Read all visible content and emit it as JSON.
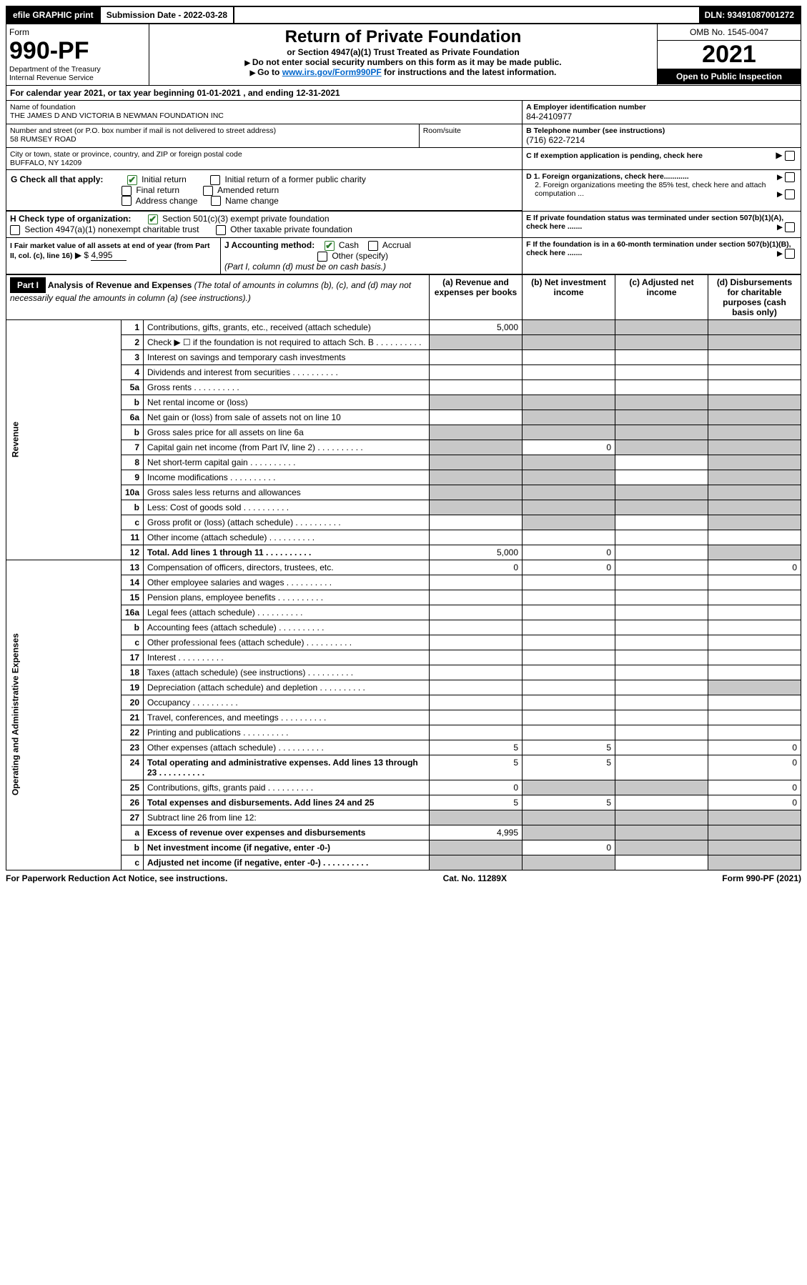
{
  "top": {
    "efile": "efile GRAPHIC print",
    "submission_label": "Submission Date - 2022-03-28",
    "dln": "DLN: 93491087001272"
  },
  "header": {
    "form_label": "Form",
    "form_no": "990-PF",
    "dept": "Department of the Treasury",
    "irs": "Internal Revenue Service",
    "title": "Return of Private Foundation",
    "subtitle": "or Section 4947(a)(1) Trust Treated as Private Foundation",
    "note1": "Do not enter social security numbers on this form as it may be made public.",
    "note2_pre": "Go to ",
    "note2_link": "www.irs.gov/Form990PF",
    "note2_post": " for instructions and the latest information.",
    "omb": "OMB No. 1545-0047",
    "year": "2021",
    "open": "Open to Public Inspection"
  },
  "cal": {
    "text_pre": "For calendar year 2021, or tax year beginning ",
    "begin": "01-01-2021",
    "mid": " , and ending ",
    "end": "12-31-2021"
  },
  "id": {
    "name_label": "Name of foundation",
    "name": "THE JAMES D AND VICTORIA B NEWMAN FOUNDATION INC",
    "addr_label": "Number and street (or P.O. box number if mail is not delivered to street address)",
    "addr": "58 RUMSEY ROAD",
    "room_label": "Room/suite",
    "city_label": "City or town, state or province, country, and ZIP or foreign postal code",
    "city": "BUFFALO, NY  14209",
    "a_label": "A Employer identification number",
    "ein": "84-2410977",
    "b_label": "B Telephone number (see instructions)",
    "phone": "(716) 622-7214",
    "c_label": "C If exemption application is pending, check here"
  },
  "g": {
    "label": "G Check all that apply:",
    "initial": "Initial return",
    "initial_public": "Initial return of a former public charity",
    "final": "Final return",
    "amended": "Amended return",
    "addr_change": "Address change",
    "name_change": "Name change"
  },
  "h": {
    "label": "H Check type of organization:",
    "opt1": "Section 501(c)(3) exempt private foundation",
    "opt2": "Section 4947(a)(1) nonexempt charitable trust",
    "opt3": "Other taxable private foundation"
  },
  "i": {
    "label": "I Fair market value of all assets at end of year (from Part II, col. (c), line 16)",
    "value": "4,995"
  },
  "j": {
    "label": "J Accounting method:",
    "cash": "Cash",
    "accrual": "Accrual",
    "other": "Other (specify)",
    "note": "(Part I, column (d) must be on cash basis.)"
  },
  "d": {
    "d1": "D 1. Foreign organizations, check here............",
    "d2": "2. Foreign organizations meeting the 85% test, check here and attach computation ..."
  },
  "e": {
    "label": "E  If private foundation status was terminated under section 507(b)(1)(A), check here ......."
  },
  "f": {
    "label": "F  If the foundation is in a 60-month termination under section 507(b)(1)(B), check here ......."
  },
  "part1": {
    "label": "Part I",
    "title": "Analysis of Revenue and Expenses",
    "note": "(The total of amounts in columns (b), (c), and (d) may not necessarily equal the amounts in column (a) (see instructions).)",
    "cols": {
      "a": "(a)  Revenue and expenses per books",
      "b": "(b)  Net investment income",
      "c": "(c)  Adjusted net income",
      "d": "(d)  Disbursements for charitable purposes (cash basis only)"
    }
  },
  "sections": {
    "revenue": "Revenue",
    "expenses": "Operating and Administrative Expenses"
  },
  "rows": [
    {
      "n": "1",
      "d": "Contributions, gifts, grants, etc., received (attach schedule)",
      "a": "5,000",
      "grey": [
        "b",
        "c",
        "d"
      ]
    },
    {
      "n": "2",
      "d": "Check ▶ ☐ if the foundation is not required to attach Sch. B",
      "dotted": true,
      "grey": [
        "a",
        "b",
        "c",
        "d"
      ]
    },
    {
      "n": "3",
      "d": "Interest on savings and temporary cash investments"
    },
    {
      "n": "4",
      "d": "Dividends and interest from securities",
      "dotted": true
    },
    {
      "n": "5a",
      "d": "Gross rents",
      "dotted": true
    },
    {
      "n": "b",
      "d": "Net rental income or (loss)",
      "grey": [
        "a",
        "b",
        "c",
        "d"
      ]
    },
    {
      "n": "6a",
      "d": "Net gain or (loss) from sale of assets not on line 10",
      "grey": [
        "b",
        "c",
        "d"
      ]
    },
    {
      "n": "b",
      "d": "Gross sales price for all assets on line 6a",
      "grey": [
        "a",
        "b",
        "c",
        "d"
      ]
    },
    {
      "n": "7",
      "d": "Capital gain net income (from Part IV, line 2)",
      "dotted": true,
      "b": "0",
      "grey": [
        "a",
        "c",
        "d"
      ]
    },
    {
      "n": "8",
      "d": "Net short-term capital gain",
      "dotted": true,
      "grey": [
        "a",
        "b",
        "d"
      ]
    },
    {
      "n": "9",
      "d": "Income modifications",
      "dotted": true,
      "grey": [
        "a",
        "b",
        "d"
      ]
    },
    {
      "n": "10a",
      "d": "Gross sales less returns and allowances",
      "grey": [
        "a",
        "b",
        "c",
        "d"
      ]
    },
    {
      "n": "b",
      "d": "Less: Cost of goods sold",
      "dotted": true,
      "grey": [
        "a",
        "b",
        "c",
        "d"
      ]
    },
    {
      "n": "c",
      "d": "Gross profit or (loss) (attach schedule)",
      "dotted": true,
      "grey": [
        "b",
        "d"
      ]
    },
    {
      "n": "11",
      "d": "Other income (attach schedule)",
      "dotted": true
    },
    {
      "n": "12",
      "d": "Total. Add lines 1 through 11",
      "dotted": true,
      "bold": true,
      "a": "5,000",
      "b": "0",
      "grey": [
        "d"
      ]
    }
  ],
  "exp_rows": [
    {
      "n": "13",
      "d": "Compensation of officers, directors, trustees, etc.",
      "a": "0",
      "b": "0",
      "dcol": "0"
    },
    {
      "n": "14",
      "d": "Other employee salaries and wages",
      "dotted": true
    },
    {
      "n": "15",
      "d": "Pension plans, employee benefits",
      "dotted": true
    },
    {
      "n": "16a",
      "d": "Legal fees (attach schedule)",
      "dotted": true
    },
    {
      "n": "b",
      "d": "Accounting fees (attach schedule)",
      "dotted": true
    },
    {
      "n": "c",
      "d": "Other professional fees (attach schedule)",
      "dotted": true
    },
    {
      "n": "17",
      "d": "Interest",
      "dotted": true
    },
    {
      "n": "18",
      "d": "Taxes (attach schedule) (see instructions)",
      "dotted": true
    },
    {
      "n": "19",
      "d": "Depreciation (attach schedule) and depletion",
      "dotted": true,
      "grey": [
        "d"
      ]
    },
    {
      "n": "20",
      "d": "Occupancy",
      "dotted": true
    },
    {
      "n": "21",
      "d": "Travel, conferences, and meetings",
      "dotted": true
    },
    {
      "n": "22",
      "d": "Printing and publications",
      "dotted": true
    },
    {
      "n": "23",
      "d": "Other expenses (attach schedule)",
      "dotted": true,
      "a": "5",
      "b": "5",
      "dcol": "0"
    },
    {
      "n": "24",
      "d": "Total operating and administrative expenses. Add lines 13 through 23",
      "dotted": true,
      "bold": true,
      "a": "5",
      "b": "5",
      "dcol": "0"
    },
    {
      "n": "25",
      "d": "Contributions, gifts, grants paid",
      "dotted": true,
      "a": "0",
      "grey": [
        "b",
        "c"
      ],
      "dcol": "0"
    },
    {
      "n": "26",
      "d": "Total expenses and disbursements. Add lines 24 and 25",
      "bold": true,
      "a": "5",
      "b": "5",
      "dcol": "0"
    },
    {
      "n": "27",
      "d": "Subtract line 26 from line 12:",
      "grey": [
        "a",
        "b",
        "c",
        "d"
      ]
    },
    {
      "n": "a",
      "d": "Excess of revenue over expenses and disbursements",
      "bold": true,
      "a": "4,995",
      "grey": [
        "b",
        "c",
        "d"
      ]
    },
    {
      "n": "b",
      "d": "Net investment income (if negative, enter -0-)",
      "bold": true,
      "b": "0",
      "grey": [
        "a",
        "c",
        "d"
      ]
    },
    {
      "n": "c",
      "d": "Adjusted net income (if negative, enter -0-)",
      "dotted": true,
      "bold": true,
      "grey": [
        "a",
        "b",
        "d"
      ]
    }
  ],
  "footer": {
    "left": "For Paperwork Reduction Act Notice, see instructions.",
    "mid": "Cat. No. 11289X",
    "right": "Form 990-PF (2021)"
  }
}
